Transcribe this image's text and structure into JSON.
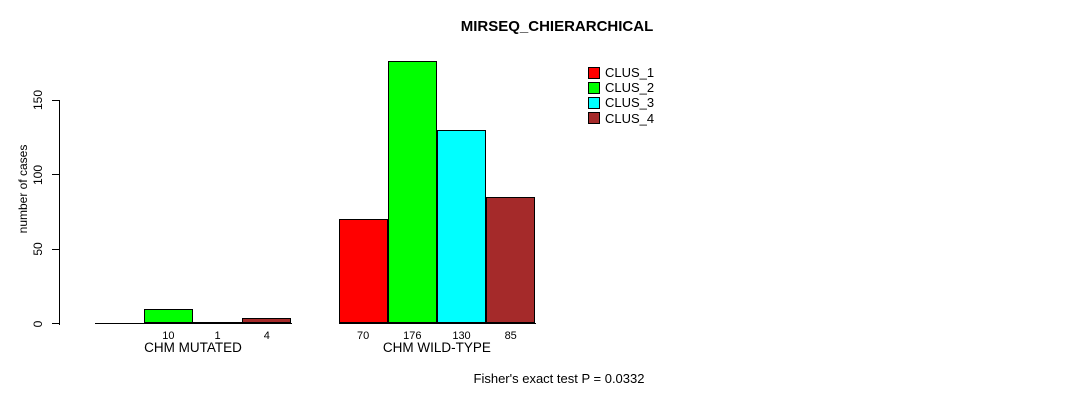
{
  "figure": {
    "background": "#ffffff",
    "text_color": "#000000"
  },
  "chart_data": {
    "type": "bar",
    "title": "MIRSEQ_CHIERARCHICAL",
    "ylabel": "number of cases",
    "xlabel": "",
    "categories": [
      "CHM MUTATED",
      "CHM WILD-TYPE"
    ],
    "series": [
      {
        "name": "CLUS_1",
        "color": "#FF0000",
        "values": [
          0,
          70
        ]
      },
      {
        "name": "CLUS_2",
        "color": "#00FF00",
        "values": [
          10,
          176
        ]
      },
      {
        "name": "CLUS_3",
        "color": "#00FFFF",
        "values": [
          1,
          130
        ]
      },
      {
        "name": "CLUS_4",
        "color": "#A52A2A",
        "values": [
          4,
          85
        ]
      }
    ],
    "bar_value_labels": [
      [
        "",
        "10",
        "1",
        "4"
      ],
      [
        "70",
        "176",
        "130",
        "85"
      ]
    ],
    "yticks": [
      0,
      50,
      100,
      150
    ],
    "ylim": [
      0,
      180
    ],
    "grid": false,
    "legend": {
      "position": "top-right",
      "entries": [
        "CLUS_1",
        "CLUS_2",
        "CLUS_3",
        "CLUS_4"
      ]
    },
    "annotation": "Fisher's exact test P = 0.0332"
  }
}
